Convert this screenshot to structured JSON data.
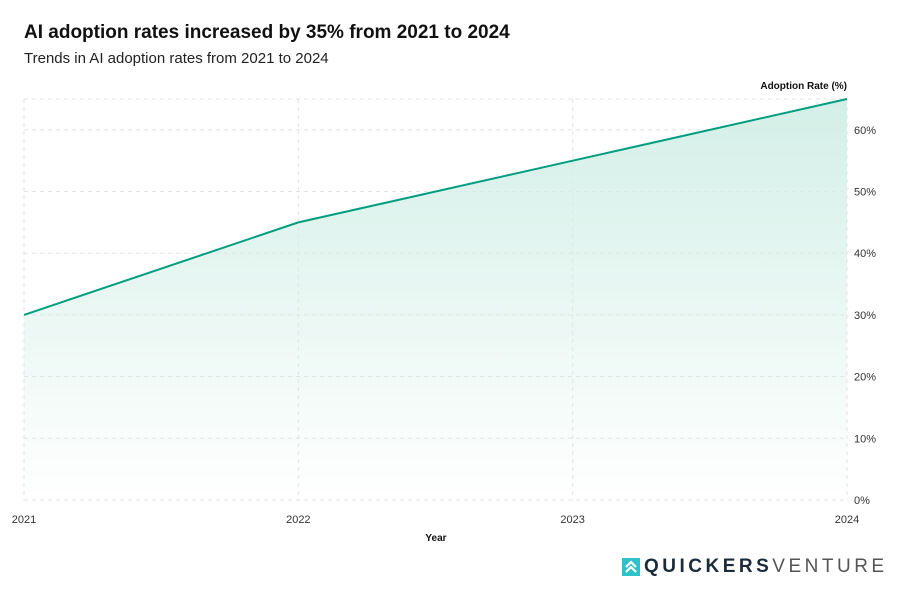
{
  "chart_data": {
    "type": "area",
    "title": "AI adoption rates increased by 35% from 2021 to 2024",
    "subtitle": "Trends in AI adoption rates from 2021 to 2024",
    "xlabel": "Year",
    "ylabel": "Adoption Rate (%)",
    "categories": [
      "2021",
      "2022",
      "2023",
      "2024"
    ],
    "values": [
      30,
      45,
      55,
      65
    ],
    "ylim": [
      0,
      65
    ],
    "yticks": [
      0,
      10,
      20,
      30,
      40,
      50,
      60
    ],
    "ytick_labels": [
      "0%",
      "10%",
      "20%",
      "30%",
      "40%",
      "50%",
      "60%"
    ],
    "y_axis_position": "right",
    "grid": true,
    "colors": {
      "line": "#009e7f",
      "fill": "#d3efe7"
    }
  },
  "logo": {
    "bold": "QUICKERS",
    "light": "VENTURE",
    "icon": "double-chevron-up-icon",
    "color": "#2fc1c9"
  }
}
